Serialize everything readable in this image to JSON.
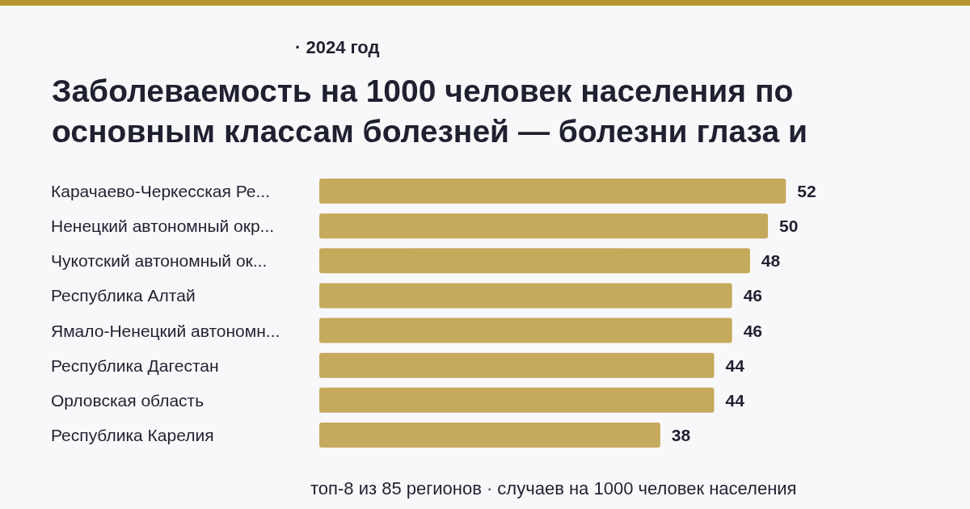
{
  "chart_data": {
    "type": "bar",
    "orientation": "horizontal",
    "title": "Заболеваемость на 1000 человек населения по основным классам болезней — болезни глаза и",
    "subtitle": "· 2024 год",
    "categories": [
      "Карачаево-Черкесская Ре...",
      "Ненецкий автономный окр...",
      "Чукотский автономный ок...",
      "Республика Алтай",
      "Ямало-Ненецкий автономн...",
      "Республика Дагестан",
      "Орловская область",
      "Республика Карелия"
    ],
    "values": [
      52,
      50,
      48,
      46,
      46,
      44,
      44,
      38
    ],
    "color": "#c5a95c",
    "data_labels": true,
    "annotations": [
      "топ-8 из 85 регионов · случаев на 1000 человек населения"
    ]
  }
}
